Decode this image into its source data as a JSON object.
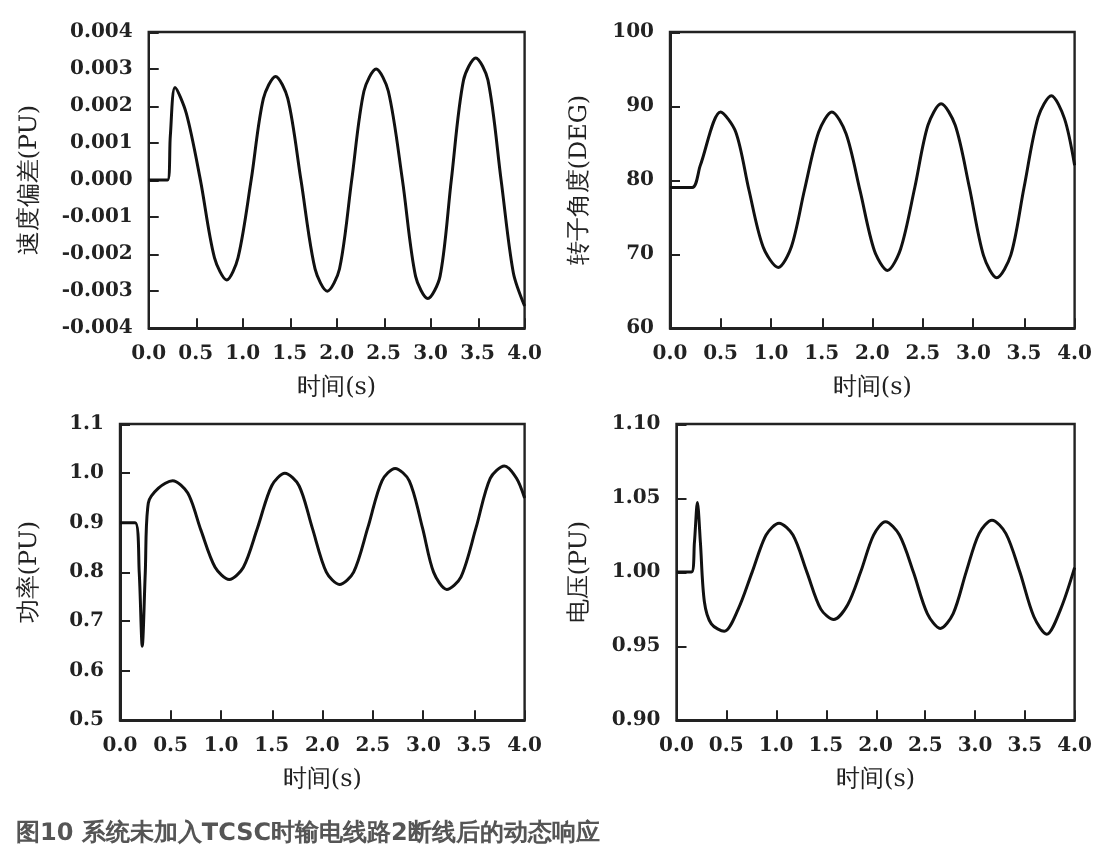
{
  "chart_data": [
    {
      "type": "line",
      "xlabel": "时间(s)",
      "ylabel": "速度偏差(PU)",
      "color": "#111111",
      "xlim": [
        0,
        4
      ],
      "xticks": [
        {
          "value": 0,
          "label": "0.0"
        },
        {
          "value": 0.5,
          "label": "0.5"
        },
        {
          "value": 1,
          "label": "1.0"
        },
        {
          "value": 1.5,
          "label": "1.5"
        },
        {
          "value": 2,
          "label": "2.0"
        },
        {
          "value": 2.5,
          "label": "2.5"
        },
        {
          "value": 3,
          "label": "3.0"
        },
        {
          "value": 3.5,
          "label": "3.5"
        },
        {
          "value": 4,
          "label": "4.0"
        }
      ],
      "ylim": [
        -0.004,
        0.004
      ],
      "yticks": [
        {
          "value": -0.004,
          "label": "-0.004"
        },
        {
          "value": -0.003,
          "label": "-0.003"
        },
        {
          "value": -0.002,
          "label": "-0.002"
        },
        {
          "value": -0.001,
          "label": "-0.001"
        },
        {
          "value": 0,
          "label": "0.000"
        },
        {
          "value": 0.001,
          "label": "0.001"
        },
        {
          "value": 0.002,
          "label": "0.002"
        },
        {
          "value": 0.003,
          "label": "0.003"
        },
        {
          "value": 0.004,
          "label": "0.004"
        }
      ],
      "x": [
        0,
        0.2,
        0.23,
        0.28,
        0.4,
        0.55,
        0.7,
        0.83,
        0.95,
        1.09,
        1.22,
        1.35,
        1.48,
        1.62,
        1.77,
        1.9,
        2.03,
        2.16,
        2.29,
        2.42,
        2.55,
        2.7,
        2.84,
        2.97,
        3.1,
        3.22,
        3.35,
        3.48,
        3.61,
        3.75,
        3.88,
        4.0
      ],
      "values": [
        0,
        0,
        0.0012,
        0.0025,
        0.0018,
        0,
        -0.0021,
        -0.0027,
        -0.0021,
        0,
        0.0022,
        0.0028,
        0.0022,
        0,
        -0.0024,
        -0.003,
        -0.0024,
        0,
        0.0024,
        0.003,
        0.0024,
        0,
        -0.0026,
        -0.0032,
        -0.0026,
        0,
        0.0027,
        0.0033,
        0.0027,
        0,
        -0.0025,
        -0.0034
      ]
    },
    {
      "type": "line",
      "xlabel": "时间(s)",
      "ylabel": "转子角度(DEG)",
      "color": "#111111",
      "xlim": [
        0,
        4
      ],
      "xticks": [
        {
          "value": 0,
          "label": "0.0"
        },
        {
          "value": 0.5,
          "label": "0.5"
        },
        {
          "value": 1,
          "label": "1.0"
        },
        {
          "value": 1.5,
          "label": "1.5"
        },
        {
          "value": 2,
          "label": "2.0"
        },
        {
          "value": 2.5,
          "label": "2.5"
        },
        {
          "value": 3,
          "label": "3.0"
        },
        {
          "value": 3.5,
          "label": "3.5"
        },
        {
          "value": 4,
          "label": "4.0"
        }
      ],
      "ylim": [
        60,
        100
      ],
      "yticks": [
        60,
        70,
        80,
        90,
        100
      ],
      "x": [
        0,
        0.22,
        0.3,
        0.5,
        0.65,
        0.78,
        0.92,
        1.07,
        1.2,
        1.33,
        1.47,
        1.6,
        1.74,
        1.88,
        2.02,
        2.15,
        2.28,
        2.42,
        2.55,
        2.68,
        2.82,
        2.96,
        3.1,
        3.23,
        3.37,
        3.5,
        3.64,
        3.77,
        3.9,
        4.0
      ],
      "values": [
        79,
        79,
        82,
        89.2,
        86.5,
        78.7,
        71,
        68.2,
        71,
        78.7,
        86.5,
        89.2,
        86.3,
        78.5,
        70.5,
        67.8,
        70.7,
        79,
        87.4,
        90.3,
        87.4,
        79,
        69.8,
        66.8,
        69.9,
        79,
        88.5,
        91.4,
        88.3,
        82
      ]
    },
    {
      "type": "line",
      "xlabel": "时间(s)",
      "ylabel": "功率(PU)",
      "color": "#111111",
      "xlim": [
        0,
        4
      ],
      "xticks": [
        {
          "value": 0,
          "label": "0.0"
        },
        {
          "value": 0.5,
          "label": "0.5"
        },
        {
          "value": 1,
          "label": "1.0"
        },
        {
          "value": 1.5,
          "label": "1.5"
        },
        {
          "value": 2,
          "label": "2.0"
        },
        {
          "value": 2.5,
          "label": "2.5"
        },
        {
          "value": 3,
          "label": "3.0"
        },
        {
          "value": 3.5,
          "label": "3.5"
        },
        {
          "value": 4,
          "label": "4.0"
        }
      ],
      "ylim": [
        0.5,
        1.1
      ],
      "yticks": [
        {
          "value": 0.5,
          "label": "0.5"
        },
        {
          "value": 0.6,
          "label": "0.6"
        },
        {
          "value": 0.7,
          "label": "0.7"
        },
        {
          "value": 0.8,
          "label": "0.8"
        },
        {
          "value": 0.9,
          "label": "0.9"
        },
        {
          "value": 1,
          "label": "1.0"
        },
        {
          "value": 1.1,
          "label": "1.1"
        }
      ],
      "x": [
        0,
        0.15,
        0.19,
        0.22,
        0.25,
        0.28,
        0.38,
        0.52,
        0.67,
        0.8,
        0.94,
        1.08,
        1.22,
        1.36,
        1.5,
        1.63,
        1.77,
        1.9,
        2.04,
        2.17,
        2.31,
        2.45,
        2.59,
        2.72,
        2.86,
        2.99,
        3.1,
        3.23,
        3.37,
        3.52,
        3.66,
        3.8,
        3.92,
        4.0
      ],
      "values": [
        0.9,
        0.9,
        0.8,
        0.65,
        0.8,
        0.94,
        0.97,
        0.985,
        0.96,
        0.885,
        0.81,
        0.785,
        0.81,
        0.89,
        0.975,
        1.0,
        0.975,
        0.89,
        0.8,
        0.775,
        0.8,
        0.89,
        0.985,
        1.01,
        0.985,
        0.89,
        0.8,
        0.765,
        0.79,
        0.89,
        0.99,
        1.015,
        0.99,
        0.95
      ]
    },
    {
      "type": "line",
      "xlabel": "时间(s)",
      "ylabel": "电压(PU)",
      "color": "#111111",
      "xlim": [
        0,
        4
      ],
      "xticks": [
        {
          "value": 0,
          "label": "0.0"
        },
        {
          "value": 0.5,
          "label": "0.5"
        },
        {
          "value": 1,
          "label": "1.0"
        },
        {
          "value": 1.5,
          "label": "1.5"
        },
        {
          "value": 2,
          "label": "2.0"
        },
        {
          "value": 2.5,
          "label": "2.5"
        },
        {
          "value": 3,
          "label": "3.0"
        },
        {
          "value": 3.5,
          "label": "3.5"
        },
        {
          "value": 4,
          "label": "4.0"
        }
      ],
      "ylim": [
        0.9,
        1.1
      ],
      "yticks": [
        {
          "value": 0.9,
          "label": "0.90"
        },
        {
          "value": 0.95,
          "label": "0.95"
        },
        {
          "value": 1,
          "label": "1.00"
        },
        {
          "value": 1.05,
          "label": "1.05"
        },
        {
          "value": 1.1,
          "label": "1.10"
        }
      ],
      "x": [
        0,
        0.15,
        0.18,
        0.21,
        0.24,
        0.28,
        0.35,
        0.48,
        0.62,
        0.76,
        0.9,
        1.03,
        1.17,
        1.31,
        1.45,
        1.58,
        1.72,
        1.85,
        1.98,
        2.1,
        2.24,
        2.38,
        2.52,
        2.65,
        2.78,
        2.91,
        3.04,
        3.17,
        3.31,
        3.45,
        3.59,
        3.72,
        3.86,
        4.0
      ],
      "values": [
        1.0,
        1.0,
        1.02,
        1.047,
        1.02,
        0.98,
        0.965,
        0.96,
        0.975,
        1.0,
        1.025,
        1.033,
        1.025,
        1.0,
        0.975,
        0.968,
        0.978,
        1.0,
        1.025,
        1.034,
        1.025,
        1.0,
        0.972,
        0.962,
        0.972,
        1.0,
        1.026,
        1.035,
        1.026,
        1.0,
        0.97,
        0.958,
        0.975,
        1.003
      ],
      "annotations": [
        "图10  系统未加入TCSC时输电线路2断线后的动态响应"
      ]
    }
  ]
}
